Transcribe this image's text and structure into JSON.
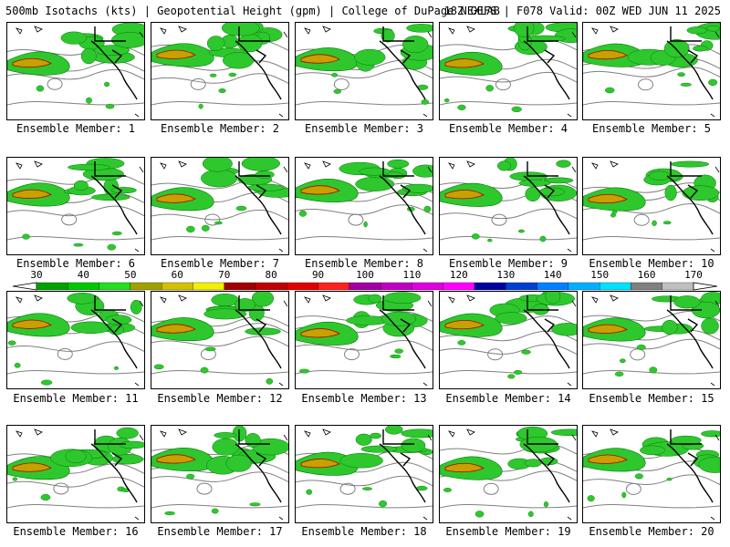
{
  "header": {
    "left": "500mb Isotachs (kts) | Geopotential Height (gpm) | College of DuPage NEXLAB",
    "right": "18Z GEFS | F078 Valid: 00Z WED JUN 11 2025"
  },
  "members": [
    {
      "label": "Ensemble Member: 1"
    },
    {
      "label": "Ensemble Member: 2"
    },
    {
      "label": "Ensemble Member: 3"
    },
    {
      "label": "Ensemble Member: 4"
    },
    {
      "label": "Ensemble Member: 5"
    },
    {
      "label": "Ensemble Member: 6"
    },
    {
      "label": "Ensemble Member: 7"
    },
    {
      "label": "Ensemble Member: 8"
    },
    {
      "label": "Ensemble Member: 9"
    },
    {
      "label": "Ensemble Member: 10"
    },
    {
      "label": "Ensemble Member: 11"
    },
    {
      "label": "Ensemble Member: 12"
    },
    {
      "label": "Ensemble Member: 13"
    },
    {
      "label": "Ensemble Member: 14"
    },
    {
      "label": "Ensemble Member: 15"
    },
    {
      "label": "Ensemble Member: 16"
    },
    {
      "label": "Ensemble Member: 17"
    },
    {
      "label": "Ensemble Member: 18"
    },
    {
      "label": "Ensemble Member: 19"
    },
    {
      "label": "Ensemble Member: 20"
    }
  ],
  "colorbar": {
    "labels": [
      "30",
      "40",
      "50",
      "60",
      "70",
      "80",
      "90",
      "100",
      "110",
      "120",
      "130",
      "140",
      "150",
      "160",
      "170"
    ],
    "colors": [
      "#00a000",
      "#00c800",
      "#20e020",
      "#a0a000",
      "#d4c000",
      "#f0f000",
      "#a00000",
      "#c00000",
      "#e00000",
      "#ff2020",
      "#a000a0",
      "#c000c0",
      "#e000e0",
      "#ff00ff",
      "#0000a0",
      "#0040d0",
      "#0080ff",
      "#00b0ff",
      "#00e0ff",
      "#808080",
      "#c0c0c0"
    ]
  },
  "map_colors": {
    "wind_light": "#2ec82e",
    "wind_dark": "#007800",
    "wind_core": "#c8a000",
    "wind_max": "#b40000",
    "height_contour": "#808080",
    "borders": "#000000"
  }
}
